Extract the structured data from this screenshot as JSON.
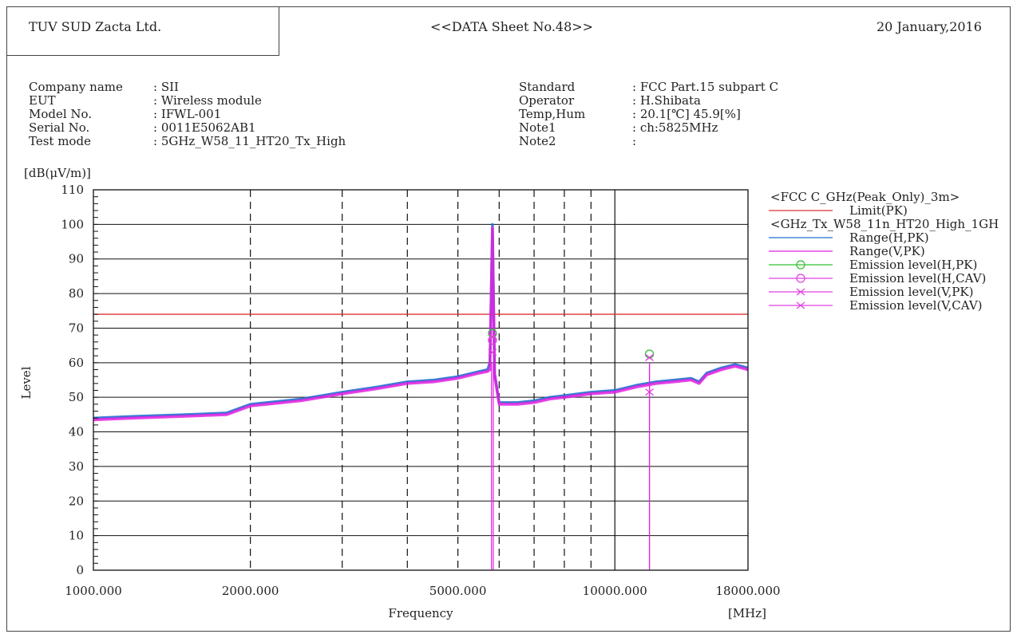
{
  "header": {
    "company": "TUV SUD Zacta Ltd.",
    "sheet": "<<DATA Sheet No.48>>",
    "date": "20 January,2016"
  },
  "info_left": [
    {
      "label": "Company name",
      "value": ": SII"
    },
    {
      "label": "EUT",
      "value": ": Wireless module"
    },
    {
      "label": "Model No.",
      "value": ": IFWL-001"
    },
    {
      "label": "Serial No.",
      "value": ": 0011E5062AB1"
    },
    {
      "label": "Test mode",
      "value": ": 5GHz_W58_11_HT20_Tx_High"
    }
  ],
  "info_right": [
    {
      "label": "Standard",
      "value": ": FCC Part.15 subpart C"
    },
    {
      "label": "Operator",
      "value": ": H.Shibata"
    },
    {
      "label": "Temp,Hum",
      "value": ": 20.1[℃] 45.9[%]"
    },
    {
      "label": "Note1",
      "value": ": ch:5825MHz"
    },
    {
      "label": "Note2",
      "value": ":"
    }
  ],
  "colors": {
    "limit": "#e03030",
    "range_h": "#1f6fd0",
    "range_v": "#e020e0",
    "emission_h_pk": "#30c030",
    "emission_magenta": "#e040e0"
  },
  "chart_data": {
    "type": "line",
    "xscale": "log",
    "xlim": [
      1000,
      18000
    ],
    "ylim": [
      0,
      110
    ],
    "yunit": "[dB(μV/m)]",
    "ylabel": "Level",
    "xlabel": "Frequency",
    "xunit": "[MHz]",
    "yticks": [
      0,
      10,
      20,
      30,
      40,
      50,
      60,
      70,
      80,
      90,
      100,
      110
    ],
    "xtick_labels": [
      {
        "value": 1000,
        "label": "1000.000"
      },
      {
        "value": 2000,
        "label": "2000.000"
      },
      {
        "value": 5000,
        "label": "5000.000"
      },
      {
        "value": 10000,
        "label": "10000.000"
      },
      {
        "value": 18000,
        "label": "18000.000"
      }
    ],
    "xgrid_dashed": [
      2000,
      3000,
      4000,
      5000,
      6000,
      7000,
      8000,
      9000
    ],
    "xgrid_solid": [
      10000
    ],
    "grid": true,
    "legend_position": "right",
    "legend_groups": [
      {
        "title": "<FCC C_GHz(Peak_Only)_3m>",
        "items": [
          "Limit(PK)"
        ]
      },
      {
        "title": "<GHz_Tx_W58_11n_HT20_High_1GH",
        "items": [
          "Range(H,PK)",
          "Range(V,PK)",
          "Emission level(H,PK)",
          "Emission level(H,CAV)",
          "Emission level(V,PK)",
          "Emission level(V,CAV)"
        ]
      }
    ],
    "limit": {
      "name": "Limit(PK)",
      "value": 74
    },
    "series": [
      {
        "name": "Range(H,PK)",
        "x": [
          1000,
          1200,
          1500,
          1800,
          2000,
          2500,
          3000,
          3500,
          4000,
          4500,
          5000,
          5500,
          5700,
          5760,
          5825,
          5880,
          6000,
          6500,
          7000,
          7500,
          8000,
          9000,
          10000,
          11000,
          12000,
          13000,
          14000,
          14500,
          15000,
          16000,
          17000,
          18000
        ],
        "y": [
          44,
          44.5,
          45,
          45.5,
          48,
          49.5,
          51.5,
          53,
          54.5,
          55,
          56,
          57.5,
          58,
          60,
          100,
          57,
          48.5,
          48.5,
          49,
          50,
          50.5,
          51.5,
          52,
          53.5,
          54.5,
          55,
          55.5,
          54.5,
          57,
          58.5,
          59.5,
          58.5
        ]
      },
      {
        "name": "Range(V,PK)",
        "x": [
          1000,
          1200,
          1500,
          1800,
          2000,
          2500,
          3000,
          3500,
          4000,
          4500,
          5000,
          5500,
          5700,
          5760,
          5825,
          5880,
          6000,
          6500,
          7000,
          7500,
          8000,
          9000,
          10000,
          11000,
          12000,
          13000,
          14000,
          14500,
          15000,
          16000,
          17000,
          18000
        ],
        "y": [
          43.5,
          44,
          44.5,
          45,
          47.5,
          49,
          51,
          52.5,
          54,
          54.5,
          55.5,
          57,
          57.5,
          58,
          99,
          56.5,
          48,
          48,
          48.5,
          49.5,
          50,
          51,
          51.5,
          53,
          54,
          54.5,
          55,
          54,
          56.5,
          58,
          59,
          58
        ]
      },
      {
        "name": "Emission level(H,PK)",
        "points": [
          [
            5825,
            68.5
          ],
          [
            11650,
            62.5
          ]
        ]
      },
      {
        "name": "Emission level(H,CAV)",
        "points": [
          [
            5825,
            66.5
          ]
        ]
      },
      {
        "name": "Emission level(V,PK)",
        "points": [
          [
            5825,
            67.5
          ],
          [
            11650,
            61.5
          ]
        ]
      },
      {
        "name": "Emission level(V,CAV)",
        "points": [
          [
            5825,
            63
          ],
          [
            11650,
            51.5
          ]
        ]
      }
    ]
  }
}
